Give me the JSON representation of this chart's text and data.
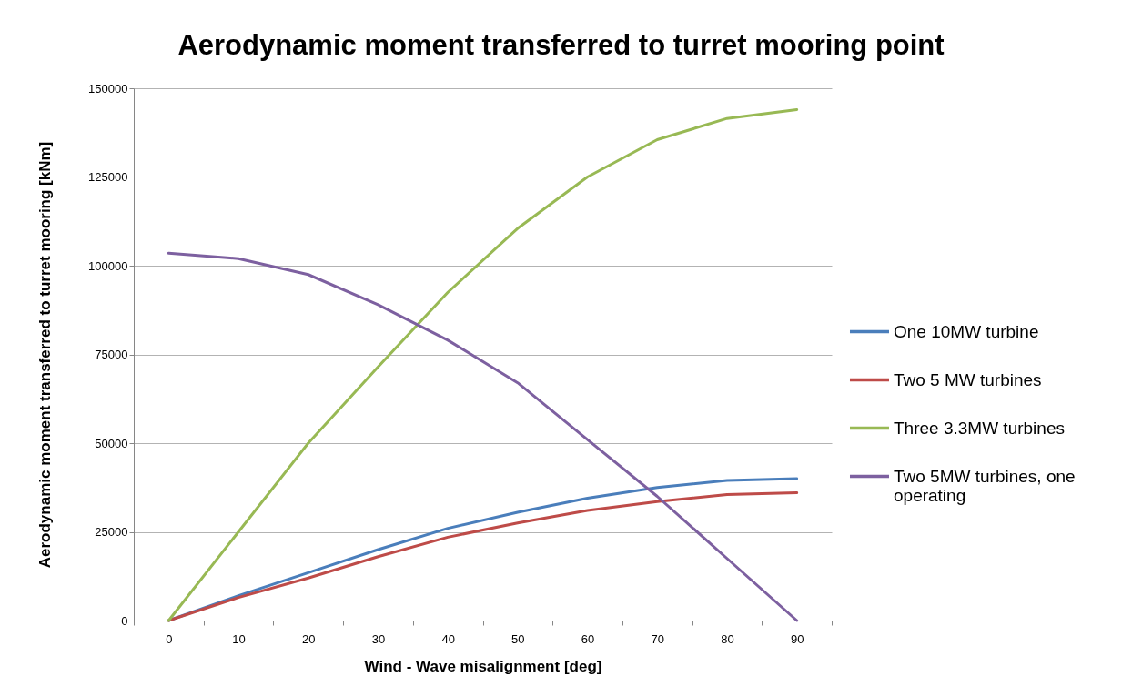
{
  "chart_data": {
    "type": "line",
    "title": "Aerodynamic moment transferred to turret mooring point",
    "xlabel": "Wind - Wave misalignment [deg]",
    "ylabel": "Aerodynamic moment transferred to turret mooring [kNm]",
    "categories": [
      "0",
      "10",
      "20",
      "30",
      "40",
      "50",
      "60",
      "70",
      "80",
      "90"
    ],
    "series": [
      {
        "name": "One 10MW turbine",
        "color": "#4a7ebb",
        "values": [
          0,
          7000,
          13500,
          20000,
          26000,
          30500,
          34500,
          37500,
          39500,
          40000
        ]
      },
      {
        "name": "Two 5 MW turbines",
        "color": "#be4b48",
        "values": [
          0,
          6500,
          12000,
          18000,
          23500,
          27500,
          31000,
          33500,
          35500,
          36000
        ]
      },
      {
        "name": "Three 3.3MW turbines",
        "color": "#98b954",
        "values": [
          0,
          25000,
          50000,
          71500,
          92500,
          110500,
          125000,
          135500,
          141500,
          144000
        ]
      },
      {
        "name": "Two 5MW turbines, one operating",
        "color": "#7d60a0",
        "values": [
          103500,
          102000,
          97500,
          89000,
          79000,
          67000,
          51000,
          35000,
          17500,
          0
        ]
      }
    ],
    "ylim": [
      0,
      150000
    ],
    "yticks": [
      0,
      25000,
      50000,
      75000,
      100000,
      125000,
      150000
    ],
    "grid": "y",
    "legend": "right"
  }
}
